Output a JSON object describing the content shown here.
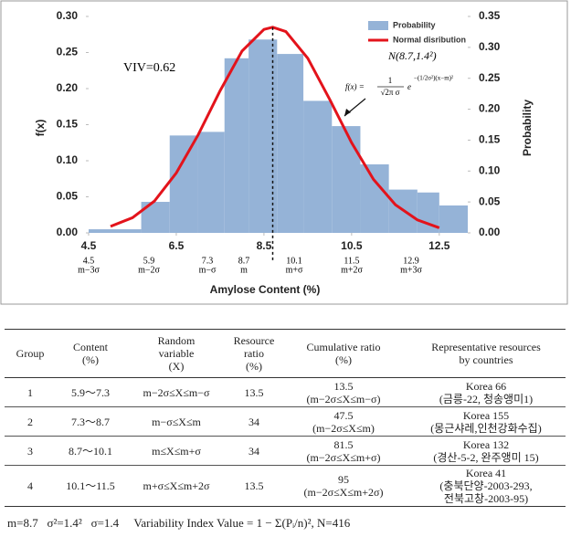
{
  "chart_data": {
    "type": "histogram",
    "bins": [
      4.5,
      5.7,
      6.35,
      7.0,
      7.6,
      8.15,
      8.8,
      9.4,
      10.05,
      10.7,
      11.35,
      12.0,
      12.5,
      13.15
    ],
    "series": [
      {
        "name": "Probability",
        "color": "#95b3d7",
        "values": [
          0.005,
          0.043,
          0.135,
          0.14,
          0.242,
          0.268,
          0.248,
          0.183,
          0.148,
          0.095,
          0.06,
          0.056,
          0.038
        ]
      },
      {
        "name": "Normal disribution",
        "type": "line",
        "color": "#e3131b",
        "x": [
          5.0,
          5.5,
          6.0,
          6.5,
          7.0,
          7.5,
          8.0,
          8.5,
          8.7,
          9.0,
          9.5,
          10.0,
          10.5,
          11.0,
          11.5,
          12.0,
          12.5
        ],
        "values": [
          0.009,
          0.021,
          0.044,
          0.083,
          0.136,
          0.197,
          0.252,
          0.282,
          0.285,
          0.279,
          0.242,
          0.185,
          0.125,
          0.074,
          0.039,
          0.018,
          0.007
        ]
      }
    ],
    "xlim": [
      4.5,
      13.15
    ],
    "xticks": [
      4.5,
      6.5,
      8.5,
      10.5,
      12.5
    ],
    "ylim": [
      0,
      0.3
    ],
    "yticks": [
      {
        "value": 0,
        "label": "0.00"
      },
      {
        "value": 0.05,
        "label": "0.05"
      },
      {
        "value": 0.1,
        "label": "0.10"
      },
      {
        "value": 0.15,
        "label": "0.15"
      },
      {
        "value": 0.2,
        "label": "0.20"
      },
      {
        "value": 0.25,
        "label": "0.25"
      },
      {
        "value": 0.3,
        "label": "0.30"
      }
    ],
    "y2lim": [
      0,
      0.35
    ],
    "y2ticks": [
      {
        "value": 0,
        "label": "0.00"
      },
      {
        "value": 0.05,
        "label": "0.05"
      },
      {
        "value": 0.1,
        "label": "0.10"
      },
      {
        "value": 0.15,
        "label": "0.15"
      },
      {
        "value": 0.2,
        "label": "0.20"
      },
      {
        "value": 0.25,
        "label": "0.25"
      },
      {
        "value": 0.3,
        "label": "0.30"
      },
      {
        "value": 0.35,
        "label": "0.35"
      }
    ],
    "xlabel": "Amylose Content (%)",
    "ylabel": "f(x)",
    "y2label": "Probability",
    "mean": 8.7,
    "sigma_labels": [
      {
        "value": 4.5,
        "label": "m−3σ"
      },
      {
        "value": 5.9,
        "label": "m−2σ"
      },
      {
        "value": 7.3,
        "label": "m−σ"
      },
      {
        "value": 8.7,
        "label": "m"
      },
      {
        "value": 10.1,
        "label": "m+σ"
      },
      {
        "value": 11.5,
        "label": "m+2σ"
      },
      {
        "value": 12.9,
        "label": "m+3σ"
      }
    ],
    "annotations": {
      "viv": "VIV=0.62",
      "distribution": "N(8.7,1.4²)",
      "formula": {
        "lhs": "f(x) =",
        "numerator": "1",
        "denominator": "√2π σ",
        "base": "e",
        "exponent": "−(1/2σ²)(x−m)²"
      }
    },
    "legend": "top-right"
  },
  "table": {
    "header": [
      "Group",
      "Content\n(%)",
      "Random\nvariable\n(X)",
      "Resource\nratio\n(%)",
      "Cumulative ratio\n(%)",
      "Representative resources\nby countries"
    ],
    "rows": [
      [
        "1",
        "5.9～7.3",
        "m−2σ≤X≤m−σ",
        "13.5",
        "13.5\n(m−2σ≤X≤m−σ)",
        "Korea 66\n(금릉-22, 청송앵미1)"
      ],
      [
        "2",
        "7.3～8.7",
        "m−σ≤X≤m",
        "34",
        "47.5\n(m−2σ≤X≤m)",
        "Korea 155\n(몽근샤레,인천강화수집)"
      ],
      [
        "3",
        "8.7～10.1",
        "m≤X≤m+σ",
        "34",
        "81.5\n(m−2σ≤X≤m+σ)",
        "Korea 132\n(경산-5-2, 완주앵미 15)"
      ],
      [
        "4",
        "10.1～11.5",
        "m+σ≤X≤m+2σ",
        "13.5",
        "95\n(m−2σ≤X≤m+2σ)",
        "Korea 41\n(충북단양-2003-293,\n전북고창-2003-95)"
      ]
    ]
  },
  "footnote": "m=8.7   σ²=1.4²   σ=1.4     Variability Index Value = 1 − Σ(Pᵢ/n)², N=416"
}
